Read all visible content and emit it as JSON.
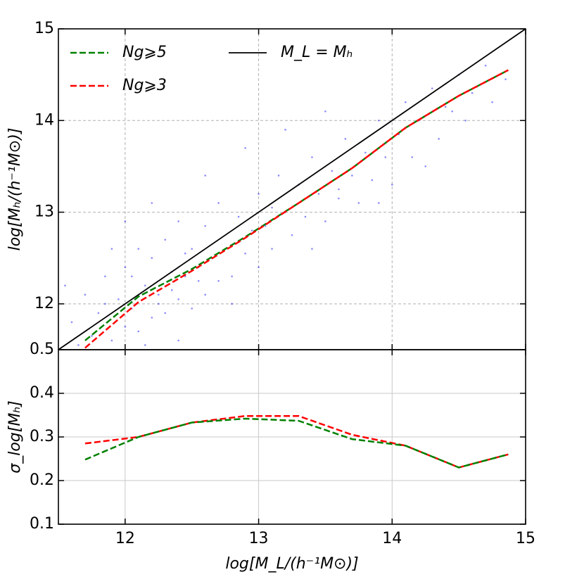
{
  "chart_data": [
    {
      "type": "scatter",
      "ylabel": "log[Mₕ/(h⁻¹M⊙)]",
      "xlim": [
        11.5,
        15
      ],
      "xticks": [
        12,
        13,
        14,
        15
      ],
      "ylim": [
        11.5,
        15
      ],
      "yticks": [
        12,
        13,
        14,
        15
      ],
      "grid": true,
      "grid_style": "dashed",
      "legend": "upper left",
      "points": {
        "color": "#0000ff",
        "x": [
          11.6,
          11.65,
          11.7,
          11.75,
          11.8,
          11.85,
          11.9,
          11.95,
          12.0,
          12.0,
          12.05,
          12.1,
          12.1,
          12.15,
          12.2,
          12.2,
          12.25,
          12.3,
          12.3,
          12.35,
          12.4,
          12.4,
          12.45,
          12.5,
          12.5,
          12.55,
          12.6,
          12.6,
          12.65,
          12.7,
          12.7,
          12.75,
          12.8,
          12.85,
          12.9,
          12.95,
          13.0,
          13.0,
          13.05,
          13.1,
          13.15,
          13.2,
          13.25,
          13.3,
          13.35,
          13.4,
          13.45,
          13.5,
          13.55,
          13.6,
          13.65,
          13.7,
          13.75,
          13.8,
          13.85,
          13.9,
          13.95,
          14.0,
          14.05,
          14.1,
          14.15,
          14.2,
          14.3,
          14.35,
          14.4,
          14.5,
          14.55,
          14.6,
          14.7,
          14.75,
          14.85,
          11.55,
          12.0,
          12.2,
          12.6,
          12.9,
          13.2,
          13.5,
          11.9,
          12.8,
          13.4,
          13.9,
          12.4,
          12.15,
          14.25,
          11.7,
          12.35,
          12.55,
          12.45,
          12.25,
          11.85,
          12.05,
          13.6,
          13.1,
          14.45
        ],
        "y": [
          11.8,
          11.55,
          12.1,
          11.65,
          11.9,
          12.3,
          11.6,
          12.05,
          11.75,
          12.4,
          11.95,
          12.6,
          11.7,
          12.2,
          11.85,
          12.5,
          12.1,
          11.9,
          12.7,
          12.35,
          12.05,
          12.9,
          12.3,
          11.95,
          12.6,
          12.4,
          12.1,
          12.85,
          12.5,
          12.25,
          13.1,
          12.6,
          12.3,
          12.95,
          12.55,
          12.8,
          12.4,
          13.2,
          12.85,
          12.6,
          13.4,
          13.0,
          12.75,
          13.3,
          12.95,
          13.6,
          13.2,
          12.9,
          13.45,
          13.15,
          13.8,
          13.4,
          13.1,
          13.65,
          13.35,
          14.0,
          13.6,
          13.3,
          13.85,
          14.2,
          13.6,
          14.0,
          14.35,
          13.8,
          14.15,
          14.5,
          14.0,
          14.3,
          14.6,
          14.2,
          14.45,
          12.2,
          12.9,
          13.1,
          13.4,
          13.7,
          13.9,
          14.1,
          12.6,
          12.0,
          12.6,
          13.1,
          11.6,
          11.55,
          13.5,
          11.5,
          12.15,
          12.25,
          12.55,
          12.0,
          12.0,
          12.3,
          13.25,
          13.05,
          14.1
        ]
      },
      "series": [
        {
          "name": "Ng⩾5",
          "color": "#008000",
          "linestyle": "dashed",
          "x": [
            11.7,
            12.1,
            12.5,
            12.9,
            13.3,
            13.7,
            14.1,
            14.5,
            14.87
          ],
          "values": [
            11.6,
            12.08,
            12.38,
            12.73,
            13.1,
            13.48,
            13.92,
            14.27,
            14.55
          ]
        },
        {
          "name": "Ng⩾3",
          "color": "#ff0000",
          "linestyle": "dashed",
          "x": [
            11.7,
            12.1,
            12.5,
            12.9,
            13.3,
            13.7,
            14.1,
            14.5,
            14.87
          ],
          "values": [
            11.52,
            12.02,
            12.36,
            12.72,
            13.1,
            13.48,
            13.92,
            14.27,
            14.55
          ]
        },
        {
          "name": "M_L = Mₕ",
          "color": "#000000",
          "linestyle": "solid",
          "x": [
            11.5,
            15
          ],
          "values": [
            11.5,
            15
          ]
        }
      ]
    },
    {
      "type": "line",
      "ylabel": "σ_log[Mₕ]",
      "xlabel": "log[M_L/(h⁻¹M⊙)]",
      "xlim": [
        11.5,
        15
      ],
      "xticks": [
        12,
        13,
        14,
        15
      ],
      "ylim": [
        0.1,
        0.5
      ],
      "yticks": [
        0.1,
        0.2,
        0.3,
        0.4,
        0.5
      ],
      "grid": true,
      "grid_style": "solid",
      "series": [
        {
          "color": "#ff0000",
          "linestyle": "dashed",
          "x": [
            11.7,
            12.1,
            12.5,
            12.9,
            13.3,
            13.7,
            14.1,
            14.5,
            14.87
          ],
          "values": [
            0.285,
            0.3,
            0.333,
            0.348,
            0.348,
            0.305,
            0.28,
            0.23,
            0.26
          ]
        },
        {
          "color": "#008000",
          "linestyle": "dashed",
          "x": [
            11.7,
            12.1,
            12.5,
            12.9,
            13.3,
            13.7,
            14.1,
            14.5,
            14.87
          ],
          "values": [
            0.248,
            0.3,
            0.333,
            0.342,
            0.337,
            0.295,
            0.28,
            0.23,
            0.26
          ]
        }
      ]
    }
  ]
}
